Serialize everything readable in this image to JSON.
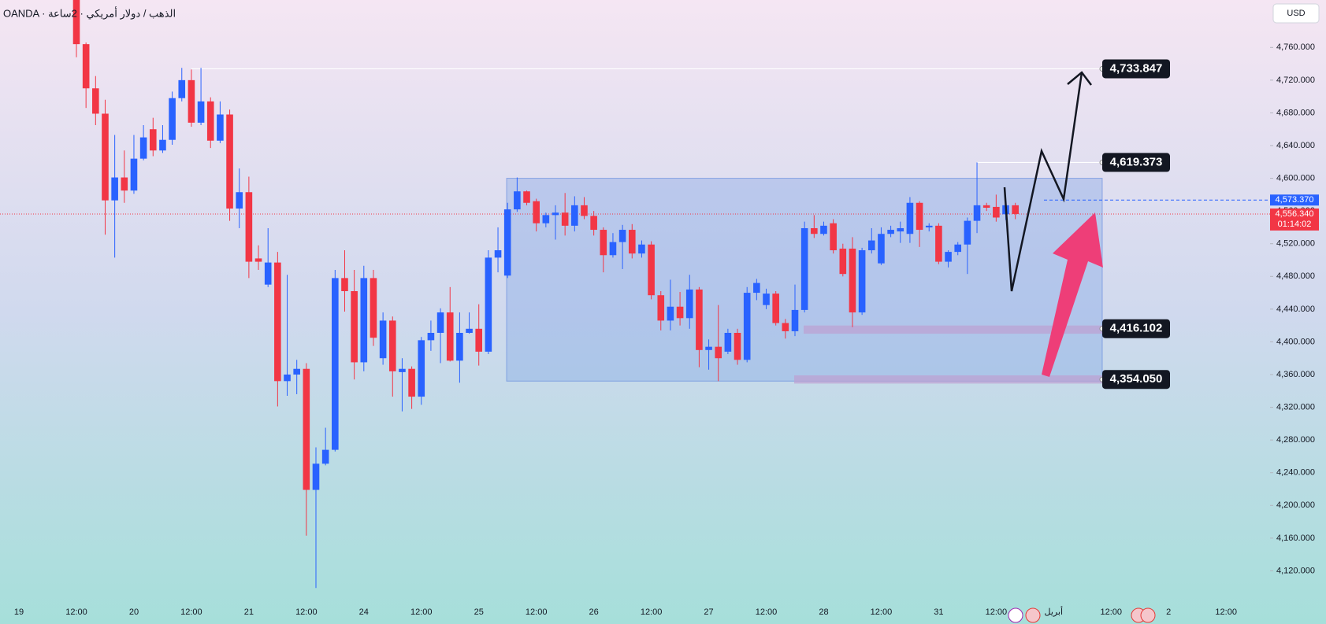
{
  "chart_data": {
    "type": "candlestick",
    "title": "OANDA · الذهب / دولار أمريكي · 2ساعة",
    "currency": "USD",
    "up_color": "#2962ff",
    "down_color": "#f23645",
    "ylim": [
      4055,
      4818
    ],
    "yticks": [
      {
        "value": 4120,
        "label": "4,120.000"
      },
      {
        "value": 4160,
        "label": "4,160.000"
      },
      {
        "value": 4200,
        "label": "4,200.000"
      },
      {
        "value": 4240,
        "label": "4,240.000"
      },
      {
        "value": 4280,
        "label": "4,280.000"
      },
      {
        "value": 4320,
        "label": "4,320.000"
      },
      {
        "value": 4360,
        "label": "4,360.000"
      },
      {
        "value": 4400,
        "label": "4,400.000"
      },
      {
        "value": 4440,
        "label": "4,440.000"
      },
      {
        "value": 4480,
        "label": "4,480.000"
      },
      {
        "value": 4520,
        "label": "4,520.000"
      },
      {
        "value": 4560,
        "label": "4,560.000"
      },
      {
        "value": 4600,
        "label": "4,600.000"
      },
      {
        "value": 4640,
        "label": "4,640.000"
      },
      {
        "value": 4680,
        "label": "4,680.000"
      },
      {
        "value": 4720,
        "label": "4,720.000"
      },
      {
        "value": 4760,
        "label": "4,760.000"
      }
    ],
    "x_labels": [
      "19",
      "12:00",
      "20",
      "12:00",
      "21",
      "12:00",
      "24",
      "12:00",
      "25",
      "12:00",
      "26",
      "12:00",
      "27",
      "12:00",
      "28",
      "12:00",
      "31",
      "12:00",
      "أبريل",
      "12:00",
      "2",
      "12:00"
    ],
    "candles": [
      {
        "o": 4818,
        "h": 4818,
        "l": 4748,
        "c": 4764
      },
      {
        "o": 4764,
        "h": 4766,
        "l": 4686,
        "c": 4710
      },
      {
        "o": 4710,
        "h": 4725,
        "l": 4665,
        "c": 4679
      },
      {
        "o": 4679,
        "h": 4696,
        "l": 4531,
        "c": 4573
      },
      {
        "o": 4573,
        "h": 4653,
        "l": 4503,
        "c": 4601
      },
      {
        "o": 4601,
        "h": 4634,
        "l": 4570,
        "c": 4585
      },
      {
        "o": 4585,
        "h": 4653,
        "l": 4581,
        "c": 4624
      },
      {
        "o": 4624,
        "h": 4665,
        "l": 4622,
        "c": 4650
      },
      {
        "o": 4660,
        "h": 4674,
        "l": 4627,
        "c": 4634
      },
      {
        "o": 4634,
        "h": 4665,
        "l": 4631,
        "c": 4647
      },
      {
        "o": 4647,
        "h": 4706,
        "l": 4641,
        "c": 4698
      },
      {
        "o": 4698,
        "h": 4735,
        "l": 4694,
        "c": 4720
      },
      {
        "o": 4720,
        "h": 4733,
        "l": 4663,
        "c": 4668
      },
      {
        "o": 4668,
        "h": 4735,
        "l": 4665,
        "c": 4694
      },
      {
        "o": 4694,
        "h": 4699,
        "l": 4637,
        "c": 4646
      },
      {
        "o": 4646,
        "h": 4694,
        "l": 4643,
        "c": 4678
      },
      {
        "o": 4678,
        "h": 4684,
        "l": 4548,
        "c": 4563
      },
      {
        "o": 4563,
        "h": 4612,
        "l": 4539,
        "c": 4583
      },
      {
        "o": 4583,
        "h": 4602,
        "l": 4478,
        "c": 4498
      },
      {
        "o": 4502,
        "h": 4518,
        "l": 4488,
        "c": 4498
      },
      {
        "o": 4470,
        "h": 4539,
        "l": 4467,
        "c": 4497
      },
      {
        "o": 4497,
        "h": 4510,
        "l": 4321,
        "c": 4352
      },
      {
        "o": 4352,
        "h": 4482,
        "l": 4334,
        "c": 4360
      },
      {
        "o": 4360,
        "h": 4378,
        "l": 4336,
        "c": 4367
      },
      {
        "o": 4367,
        "h": 4374,
        "l": 4163,
        "c": 4219
      },
      {
        "o": 4219,
        "h": 4271,
        "l": 4099,
        "c": 4251
      },
      {
        "o": 4251,
        "h": 4295,
        "l": 4249,
        "c": 4268
      },
      {
        "o": 4268,
        "h": 4488,
        "l": 4266,
        "c": 4478
      },
      {
        "o": 4478,
        "h": 4512,
        "l": 4437,
        "c": 4462
      },
      {
        "o": 4462,
        "h": 4488,
        "l": 4354,
        "c": 4375
      },
      {
        "o": 4375,
        "h": 4493,
        "l": 4364,
        "c": 4478
      },
      {
        "o": 4478,
        "h": 4488,
        "l": 4395,
        "c": 4405
      },
      {
        "o": 4380,
        "h": 4436,
        "l": 4372,
        "c": 4426
      },
      {
        "o": 4426,
        "h": 4431,
        "l": 4333,
        "c": 4364
      },
      {
        "o": 4363,
        "h": 4380,
        "l": 4315,
        "c": 4367
      },
      {
        "o": 4367,
        "h": 4370,
        "l": 4318,
        "c": 4333
      },
      {
        "o": 4333,
        "h": 4406,
        "l": 4323,
        "c": 4402
      },
      {
        "o": 4402,
        "h": 4426,
        "l": 4389,
        "c": 4411
      },
      {
        "o": 4411,
        "h": 4441,
        "l": 4374,
        "c": 4436
      },
      {
        "o": 4436,
        "h": 4467,
        "l": 4376,
        "c": 4377
      },
      {
        "o": 4377,
        "h": 4436,
        "l": 4350,
        "c": 4411
      },
      {
        "o": 4411,
        "h": 4436,
        "l": 4410,
        "c": 4416
      },
      {
        "o": 4416,
        "h": 4446,
        "l": 4371,
        "c": 4388
      },
      {
        "o": 4388,
        "h": 4512,
        "l": 4385,
        "c": 4503
      },
      {
        "o": 4503,
        "h": 4540,
        "l": 4485,
        "c": 4512
      },
      {
        "o": 4481,
        "h": 4570,
        "l": 4478,
        "c": 4562
      },
      {
        "o": 4562,
        "h": 4601,
        "l": 4559,
        "c": 4584
      },
      {
        "o": 4584,
        "h": 4585,
        "l": 4567,
        "c": 4570
      },
      {
        "o": 4572,
        "h": 4575,
        "l": 4535,
        "c": 4545
      },
      {
        "o": 4545,
        "h": 4558,
        "l": 4540,
        "c": 4555
      },
      {
        "o": 4555,
        "h": 4567,
        "l": 4525,
        "c": 4558
      },
      {
        "o": 4558,
        "h": 4582,
        "l": 4530,
        "c": 4542
      },
      {
        "o": 4542,
        "h": 4578,
        "l": 4535,
        "c": 4567
      },
      {
        "o": 4567,
        "h": 4577,
        "l": 4550,
        "c": 4554
      },
      {
        "o": 4554,
        "h": 4560,
        "l": 4530,
        "c": 4537
      },
      {
        "o": 4537,
        "h": 4540,
        "l": 4485,
        "c": 4506
      },
      {
        "o": 4506,
        "h": 4533,
        "l": 4503,
        "c": 4522
      },
      {
        "o": 4522,
        "h": 4543,
        "l": 4489,
        "c": 4537
      },
      {
        "o": 4537,
        "h": 4544,
        "l": 4502,
        "c": 4508
      },
      {
        "o": 4508,
        "h": 4524,
        "l": 4503,
        "c": 4519
      },
      {
        "o": 4519,
        "h": 4523,
        "l": 4452,
        "c": 4457
      },
      {
        "o": 4457,
        "h": 4462,
        "l": 4414,
        "c": 4426
      },
      {
        "o": 4426,
        "h": 4476,
        "l": 4414,
        "c": 4443
      },
      {
        "o": 4443,
        "h": 4461,
        "l": 4420,
        "c": 4429
      },
      {
        "o": 4429,
        "h": 4482,
        "l": 4416,
        "c": 4464
      },
      {
        "o": 4464,
        "h": 4467,
        "l": 4369,
        "c": 4390
      },
      {
        "o": 4390,
        "h": 4403,
        "l": 4366,
        "c": 4394
      },
      {
        "o": 4394,
        "h": 4445,
        "l": 4352,
        "c": 4380
      },
      {
        "o": 4388,
        "h": 4416,
        "l": 4385,
        "c": 4411
      },
      {
        "o": 4411,
        "h": 4416,
        "l": 4372,
        "c": 4378
      },
      {
        "o": 4378,
        "h": 4467,
        "l": 4375,
        "c": 4460
      },
      {
        "o": 4460,
        "h": 4477,
        "l": 4451,
        "c": 4472
      },
      {
        "o": 4445,
        "h": 4465,
        "l": 4440,
        "c": 4459
      },
      {
        "o": 4459,
        "h": 4462,
        "l": 4420,
        "c": 4423
      },
      {
        "o": 4423,
        "h": 4428,
        "l": 4404,
        "c": 4413
      },
      {
        "o": 4413,
        "h": 4470,
        "l": 4407,
        "c": 4439
      },
      {
        "o": 4439,
        "h": 4547,
        "l": 4436,
        "c": 4539
      },
      {
        "o": 4539,
        "h": 4555,
        "l": 4527,
        "c": 4532
      },
      {
        "o": 4532,
        "h": 4547,
        "l": 4530,
        "c": 4542
      },
      {
        "o": 4545,
        "h": 4550,
        "l": 4508,
        "c": 4512
      },
      {
        "o": 4514,
        "h": 4520,
        "l": 4480,
        "c": 4483
      },
      {
        "o": 4514,
        "h": 4528,
        "l": 4418,
        "c": 4436
      },
      {
        "o": 4436,
        "h": 4515,
        "l": 4433,
        "c": 4512
      },
      {
        "o": 4512,
        "h": 4539,
        "l": 4508,
        "c": 4524
      },
      {
        "o": 4496,
        "h": 4540,
        "l": 4494,
        "c": 4532
      },
      {
        "o": 4532,
        "h": 4542,
        "l": 4528,
        "c": 4537
      },
      {
        "o": 4535,
        "h": 4547,
        "l": 4521,
        "c": 4539
      },
      {
        "o": 4532,
        "h": 4577,
        "l": 4521,
        "c": 4570
      },
      {
        "o": 4570,
        "h": 4572,
        "l": 4516,
        "c": 4537
      },
      {
        "o": 4540,
        "h": 4545,
        "l": 4535,
        "c": 4542
      },
      {
        "o": 4542,
        "h": 4545,
        "l": 4495,
        "c": 4498
      },
      {
        "o": 4498,
        "h": 4512,
        "l": 4491,
        "c": 4510
      },
      {
        "o": 4510,
        "h": 4522,
        "l": 4506,
        "c": 4519
      },
      {
        "o": 4519,
        "h": 4552,
        "l": 4483,
        "c": 4548
      },
      {
        "o": 4548,
        "h": 4619.373,
        "l": 4533,
        "c": 4567
      },
      {
        "o": 4567,
        "h": 4570,
        "l": 4560,
        "c": 4564
      },
      {
        "o": 4565,
        "h": 4580,
        "l": 4547,
        "c": 4552
      },
      {
        "o": 4556,
        "h": 4573,
        "l": 4549,
        "c": 4567
      },
      {
        "o": 4567,
        "h": 4570,
        "l": 4550,
        "c": 4556.34
      }
    ],
    "zones": [
      {
        "from": 4352,
        "to": 4600
      },
      {
        "from": 4410,
        "to": 4420
      },
      {
        "from": 4349,
        "to": 4359
      }
    ],
    "levels": [
      {
        "value": 4733.847,
        "label": "4,733.847"
      },
      {
        "value": 4619.373,
        "label": "4,619.373"
      },
      {
        "value": 4416.102,
        "label": "4,416.102"
      },
      {
        "value": 4354.05,
        "label": "4,354.050"
      }
    ],
    "last_price": {
      "value": 4556.34,
      "label": "4,556.340"
    },
    "countdown": "01:14:02",
    "bid": {
      "value": 4573.37,
      "label": "4,573.370"
    }
  }
}
